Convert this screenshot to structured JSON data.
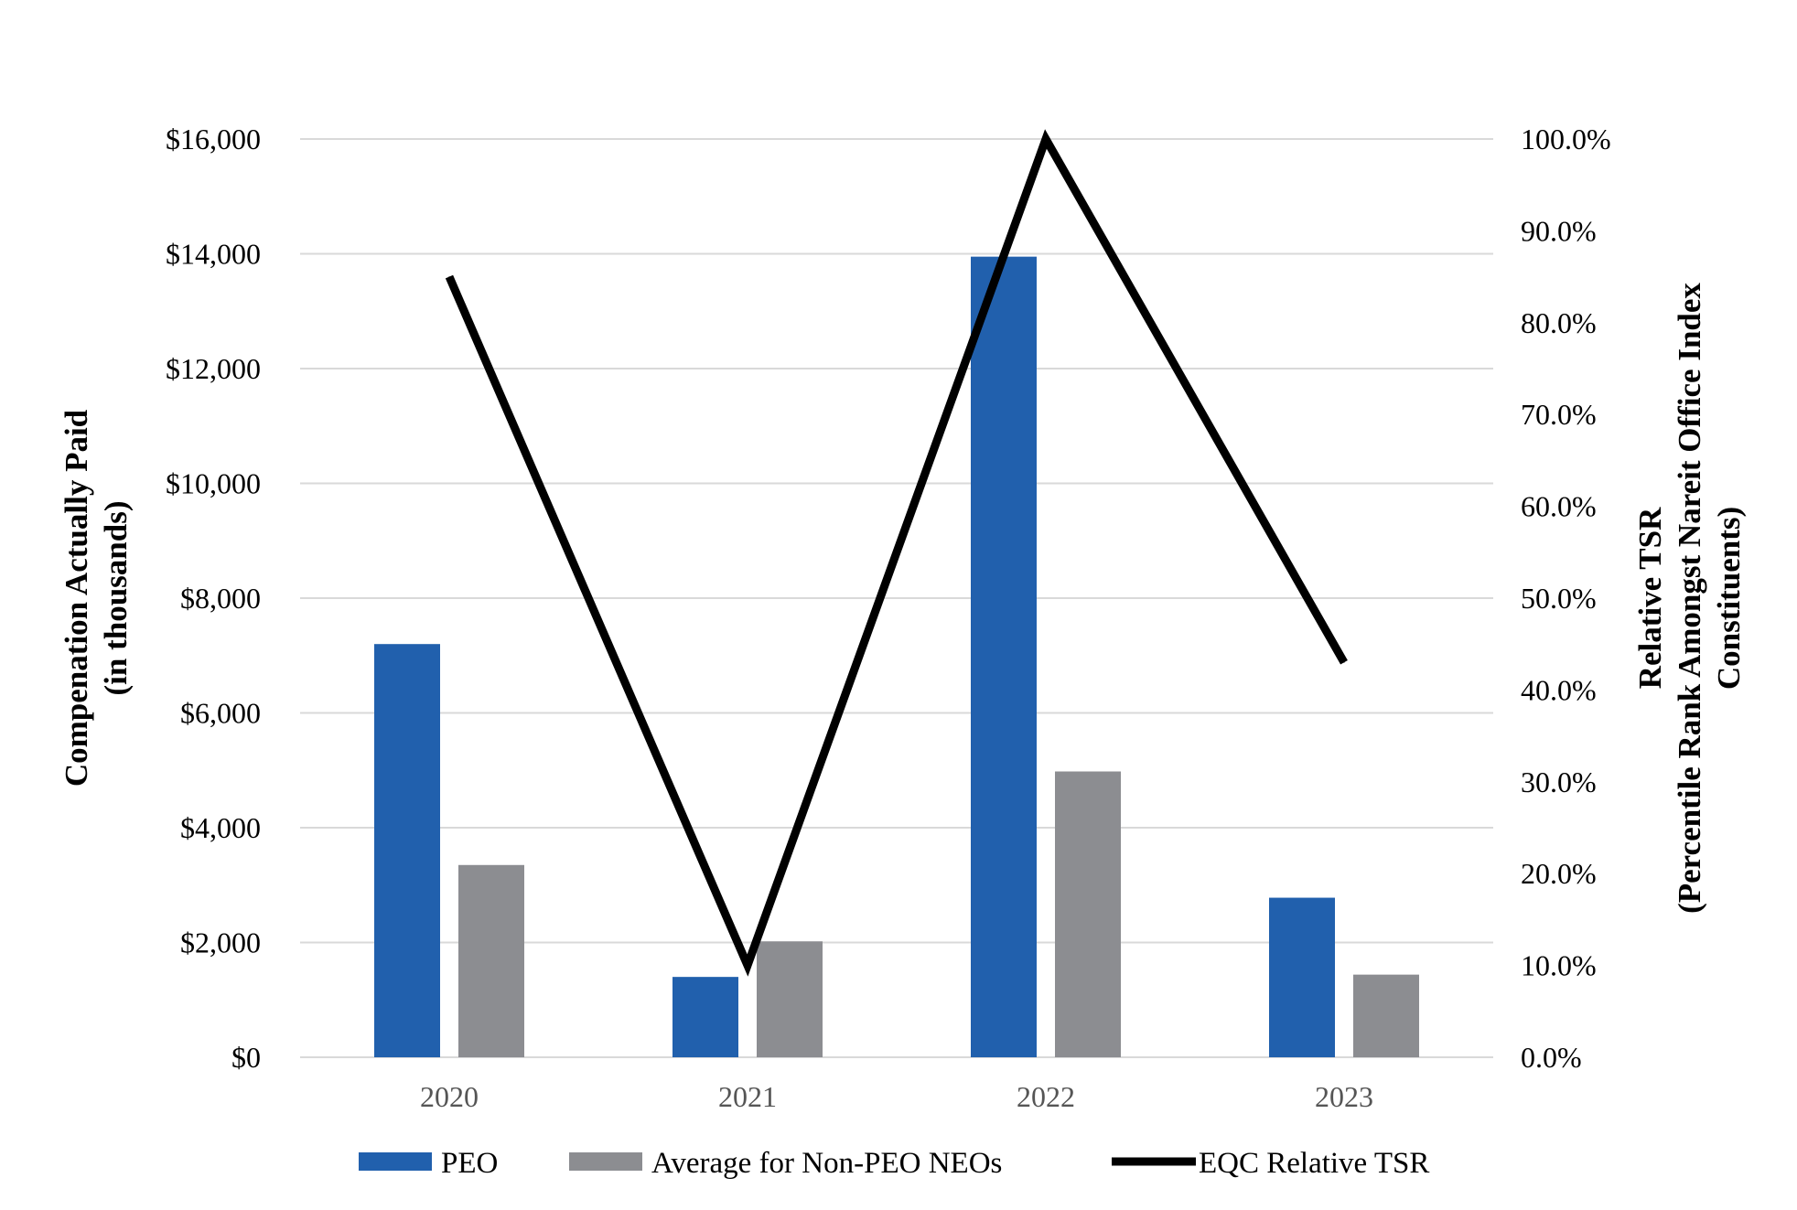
{
  "chart_data": {
    "type": "bar",
    "title": "",
    "categories": [
      "2020",
      "2021",
      "2022",
      "2023"
    ],
    "ylabel_lines": [
      "Compenation Actually Paid",
      "(in thousands)"
    ],
    "y2label_lines": [
      "Relative TSR",
      "(Percentile Rank Amongst Nareit Office Index",
      "Constituents)"
    ],
    "ylim": [
      0,
      16000
    ],
    "y2lim": [
      0,
      100
    ],
    "yticks": [
      0,
      2000,
      4000,
      6000,
      8000,
      10000,
      12000,
      14000,
      16000
    ],
    "ytick_labels": [
      "$0",
      "$2,000",
      "$4,000",
      "$6,000",
      "$8,000",
      "$10,000",
      "$12,000",
      "$14,000",
      "$16,000"
    ],
    "y2ticks": [
      0,
      10,
      20,
      30,
      40,
      50,
      60,
      70,
      80,
      90,
      100
    ],
    "y2tick_labels": [
      "0.0%",
      "10.0%",
      "20.0%",
      "30.0%",
      "40.0%",
      "50.0%",
      "60.0%",
      "70.0%",
      "80.0%",
      "90.0%",
      "100.0%"
    ],
    "grid": true,
    "legend_position": "bottom",
    "series": [
      {
        "name": "PEO",
        "kind": "bar",
        "axis": "left",
        "color": "#2160ad",
        "values": [
          7200,
          1400,
          13950,
          2780
        ]
      },
      {
        "name": "Average for Non-PEO NEOs",
        "kind": "bar",
        "axis": "left",
        "color": "#8c8d91",
        "values": [
          3350,
          2020,
          4980,
          1440
        ]
      },
      {
        "name": "EQC Relative TSR",
        "kind": "line",
        "axis": "right",
        "color": "#000000",
        "values": [
          85.0,
          10.0,
          100.0,
          43.0
        ]
      }
    ]
  }
}
